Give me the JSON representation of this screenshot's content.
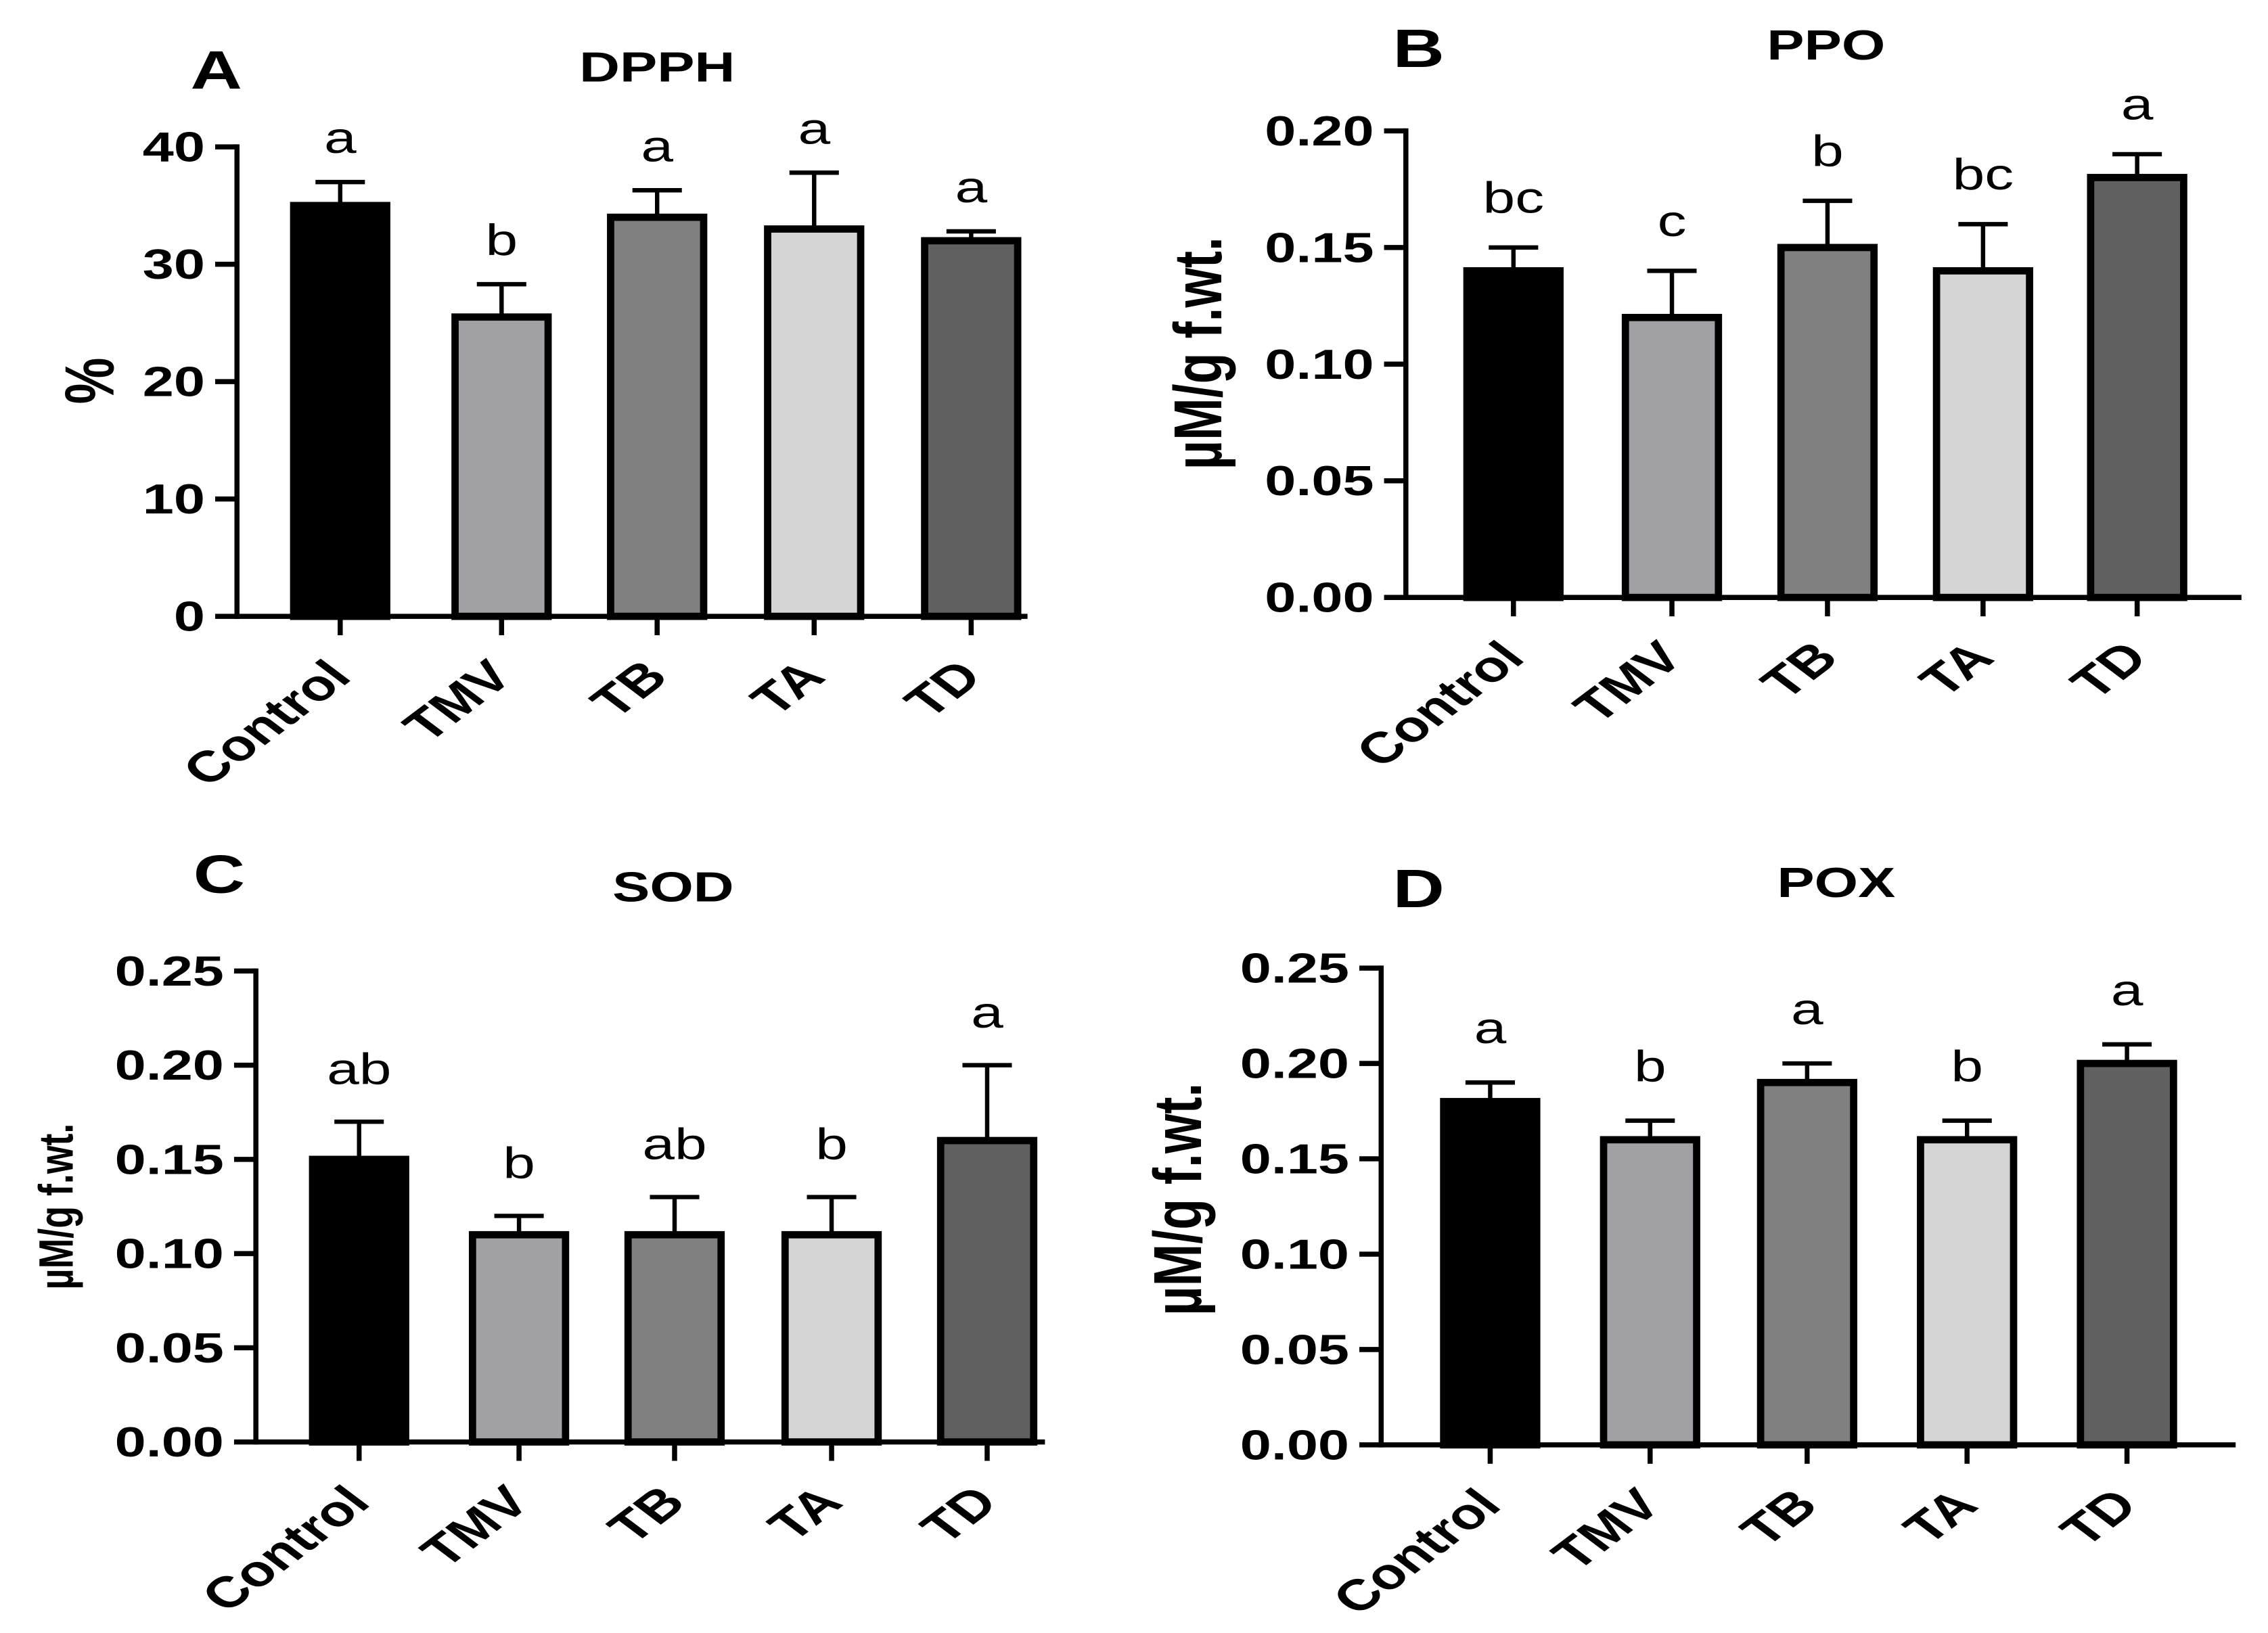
{
  "chart_data": [
    {
      "panel_label": "A",
      "type": "bar",
      "title": "DPPH",
      "xlabel": "",
      "ylabel": "%",
      "categories": [
        "Control",
        "TMV",
        "TB",
        "TA",
        "TD"
      ],
      "values": [
        35,
        25.5,
        34,
        33,
        32
      ],
      "errors": [
        2,
        2.8,
        2.3,
        4.8,
        0.8
      ],
      "significance": [
        "a",
        "b",
        "a",
        "a",
        "a"
      ],
      "ylim": [
        0,
        40
      ],
      "yticks": [
        0,
        10,
        20,
        30,
        40
      ],
      "ytick_labels": [
        "0",
        "10",
        "20",
        "30",
        "40"
      ],
      "bar_colors": [
        "#000000",
        "#a0a0a5",
        "#808080",
        "#d5d5d5",
        "#606060"
      ],
      "grid": false
    },
    {
      "panel_label": "B",
      "type": "bar",
      "title": "PPO",
      "xlabel": "",
      "ylabel": "µM/g f.wt.",
      "categories": [
        "Control",
        "TMV",
        "TB",
        "TA",
        "TD"
      ],
      "values": [
        0.14,
        0.12,
        0.15,
        0.14,
        0.18
      ],
      "errors": [
        0.01,
        0.02,
        0.02,
        0.02,
        0.01
      ],
      "significance": [
        "bc",
        "c",
        "b",
        "bc",
        "a"
      ],
      "ylim": [
        0,
        0.2
      ],
      "yticks": [
        0,
        0.05,
        0.1,
        0.15,
        0.2
      ],
      "ytick_labels": [
        "0.00",
        "0.05",
        "0.10",
        "0.15",
        "0.20"
      ],
      "bar_colors": [
        "#000000",
        "#a0a0a5",
        "#808080",
        "#d5d5d5",
        "#606060"
      ],
      "grid": false
    },
    {
      "panel_label": "C",
      "type": "bar",
      "title": "SOD",
      "xlabel": "",
      "ylabel": "µM/g f.wt.",
      "categories": [
        "Control",
        "TMV",
        "TB",
        "TA",
        "TD"
      ],
      "values": [
        0.15,
        0.11,
        0.11,
        0.11,
        0.16
      ],
      "errors": [
        0.02,
        0.01,
        0.02,
        0.02,
        0.04
      ],
      "significance": [
        "ab",
        "b",
        "ab",
        "b",
        "a"
      ],
      "ylim": [
        0,
        0.25
      ],
      "yticks": [
        0,
        0.05,
        0.1,
        0.15,
        0.2,
        0.25
      ],
      "ytick_labels": [
        "0.00",
        "0.05",
        "0.10",
        "0.15",
        "0.20",
        "0.25"
      ],
      "bar_colors": [
        "#000000",
        "#a0a0a5",
        "#808080",
        "#d5d5d5",
        "#606060"
      ],
      "grid": false
    },
    {
      "panel_label": "D",
      "type": "bar",
      "title": "POX",
      "xlabel": "",
      "ylabel": "µM/g f.wt.",
      "categories": [
        "Control",
        "TMV",
        "TB",
        "TA",
        "TD"
      ],
      "values": [
        0.18,
        0.16,
        0.19,
        0.16,
        0.2
      ],
      "errors": [
        0.01,
        0.01,
        0.01,
        0.01,
        0.01
      ],
      "significance": [
        "a",
        "b",
        "a",
        "b",
        "a"
      ],
      "ylim": [
        0,
        0.25
      ],
      "yticks": [
        0,
        0.05,
        0.1,
        0.15,
        0.2,
        0.25
      ],
      "ytick_labels": [
        "0.00",
        "0.05",
        "0.10",
        "0.15",
        "0.20",
        "0.25"
      ],
      "bar_colors": [
        "#000000",
        "#a0a0a5",
        "#808080",
        "#d5d5d5",
        "#606060"
      ],
      "grid": false
    }
  ]
}
